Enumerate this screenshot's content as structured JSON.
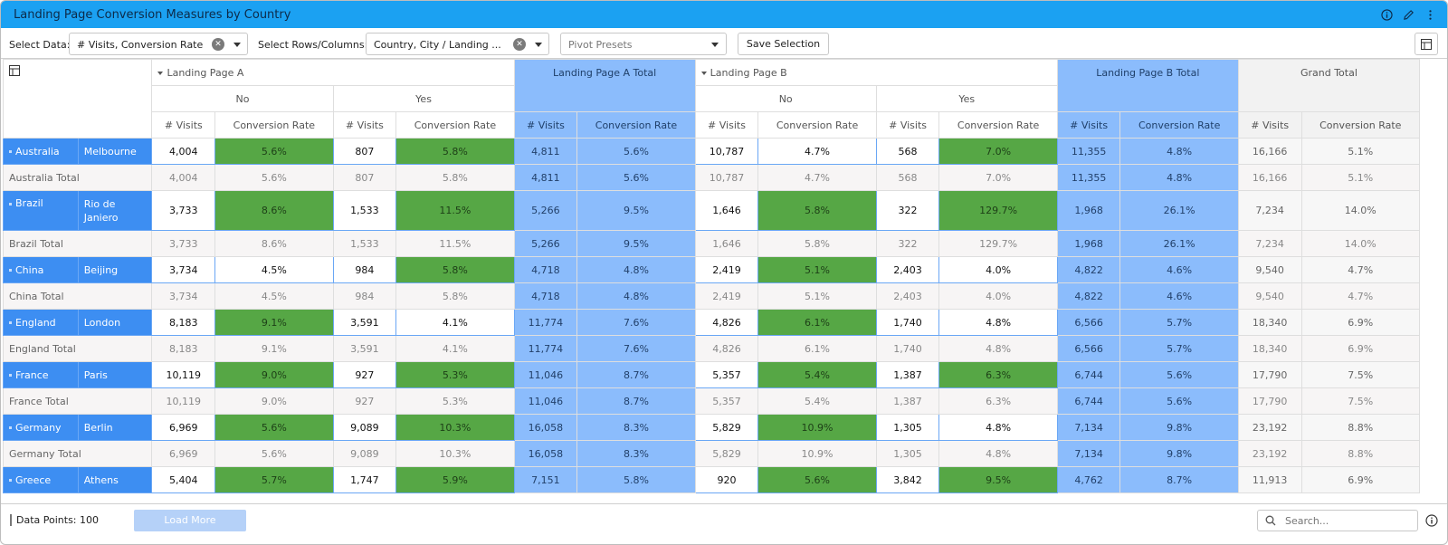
{
  "window": {
    "title": "Landing Page Conversion Measures by Country"
  },
  "title_icons": [
    {
      "name": "info-icon"
    },
    {
      "name": "pencil-icon"
    },
    {
      "name": "more-vertical-icon"
    }
  ],
  "toolbar": {
    "select_data_label": "Select Data:",
    "select_data_value": "# Visits, Conversion Rate",
    "select_rows_label": "Select Rows/Columns:",
    "select_rows_value": "Country, City / Landing ...",
    "pivot_presets_placeholder": "Pivot Presets",
    "save_selection_label": "Save Selection"
  },
  "columns": {
    "groups": [
      {
        "label": "Landing Page A",
        "subgroups": [
          "No",
          "Yes"
        ]
      },
      {
        "label": "Landing Page A Total"
      },
      {
        "label": "Landing Page B",
        "subgroups": [
          "No",
          "Yes"
        ]
      },
      {
        "label": "Landing Page B Total"
      },
      {
        "label": "Grand Total"
      }
    ],
    "measures": [
      "# Visits",
      "Conversion Rate"
    ]
  },
  "rows": [
    {
      "country": "Australia",
      "city": "Melbourne",
      "a_no": [
        "4,004",
        "5.6%"
      ],
      "a_yes": [
        "807",
        "5.8%"
      ],
      "a_tot": [
        "4,811",
        "5.6%"
      ],
      "b_no": [
        "10,787",
        "4.7%"
      ],
      "b_yes": [
        "568",
        "7.0%"
      ],
      "b_tot": [
        "11,355",
        "4.8%"
      ],
      "gt": [
        "16,166",
        "5.1%"
      ],
      "green": [
        true,
        true,
        false,
        true
      ],
      "total_label": "Australia Total"
    },
    {
      "country": "Brazil",
      "city": "Rio de Janiero",
      "a_no": [
        "3,733",
        "8.6%"
      ],
      "a_yes": [
        "1,533",
        "11.5%"
      ],
      "a_tot": [
        "5,266",
        "9.5%"
      ],
      "b_no": [
        "1,646",
        "5.8%"
      ],
      "b_yes": [
        "322",
        "129.7%"
      ],
      "b_tot": [
        "1,968",
        "26.1%"
      ],
      "gt": [
        "7,234",
        "14.0%"
      ],
      "green": [
        true,
        true,
        true,
        true
      ],
      "total_label": "Brazil Total"
    },
    {
      "country": "China",
      "city": "Beijing",
      "a_no": [
        "3,734",
        "4.5%"
      ],
      "a_yes": [
        "984",
        "5.8%"
      ],
      "a_tot": [
        "4,718",
        "4.8%"
      ],
      "b_no": [
        "2,419",
        "5.1%"
      ],
      "b_yes": [
        "2,403",
        "4.0%"
      ],
      "b_tot": [
        "4,822",
        "4.6%"
      ],
      "gt": [
        "9,540",
        "4.7%"
      ],
      "green": [
        false,
        true,
        true,
        false
      ],
      "total_label": "China Total"
    },
    {
      "country": "England",
      "city": "London",
      "a_no": [
        "8,183",
        "9.1%"
      ],
      "a_yes": [
        "3,591",
        "4.1%"
      ],
      "a_tot": [
        "11,774",
        "7.6%"
      ],
      "b_no": [
        "4,826",
        "6.1%"
      ],
      "b_yes": [
        "1,740",
        "4.8%"
      ],
      "b_tot": [
        "6,566",
        "5.7%"
      ],
      "gt": [
        "18,340",
        "6.9%"
      ],
      "green": [
        true,
        false,
        true,
        false
      ],
      "total_label": "England Total"
    },
    {
      "country": "France",
      "city": "Paris",
      "a_no": [
        "10,119",
        "9.0%"
      ],
      "a_yes": [
        "927",
        "5.3%"
      ],
      "a_tot": [
        "11,046",
        "8.7%"
      ],
      "b_no": [
        "5,357",
        "5.4%"
      ],
      "b_yes": [
        "1,387",
        "6.3%"
      ],
      "b_tot": [
        "6,744",
        "5.6%"
      ],
      "gt": [
        "17,790",
        "7.5%"
      ],
      "green": [
        true,
        true,
        true,
        true
      ],
      "total_label": "France Total"
    },
    {
      "country": "Germany",
      "city": "Berlin",
      "a_no": [
        "6,969",
        "5.6%"
      ],
      "a_yes": [
        "9,089",
        "10.3%"
      ],
      "a_tot": [
        "16,058",
        "8.3%"
      ],
      "b_no": [
        "5,829",
        "10.9%"
      ],
      "b_yes": [
        "1,305",
        "4.8%"
      ],
      "b_tot": [
        "7,134",
        "9.8%"
      ],
      "gt": [
        "23,192",
        "8.8%"
      ],
      "green": [
        true,
        true,
        true,
        false
      ],
      "total_label": "Germany Total"
    },
    {
      "country": "Greece",
      "city": "Athens",
      "a_no": [
        "5,404",
        "5.7%"
      ],
      "a_yes": [
        "1,747",
        "5.9%"
      ],
      "a_tot": [
        "7,151",
        "5.8%"
      ],
      "b_no": [
        "920",
        "5.6%"
      ],
      "b_yes": [
        "3,842",
        "9.5%"
      ],
      "b_tot": [
        "4,762",
        "8.7%"
      ],
      "gt": [
        "11,913",
        "6.9%"
      ],
      "green": [
        true,
        true,
        true,
        true
      ],
      "total_label": ""
    }
  ],
  "footer": {
    "data_points": "Data Points: 100",
    "load_more": "Load More",
    "search_placeholder": "Search..."
  },
  "colors": {
    "title_bar": "#1ba1f2",
    "row_header": "#3d8ef2",
    "total_column": "#8bbcfc",
    "high_conversion": "#56a745"
  }
}
